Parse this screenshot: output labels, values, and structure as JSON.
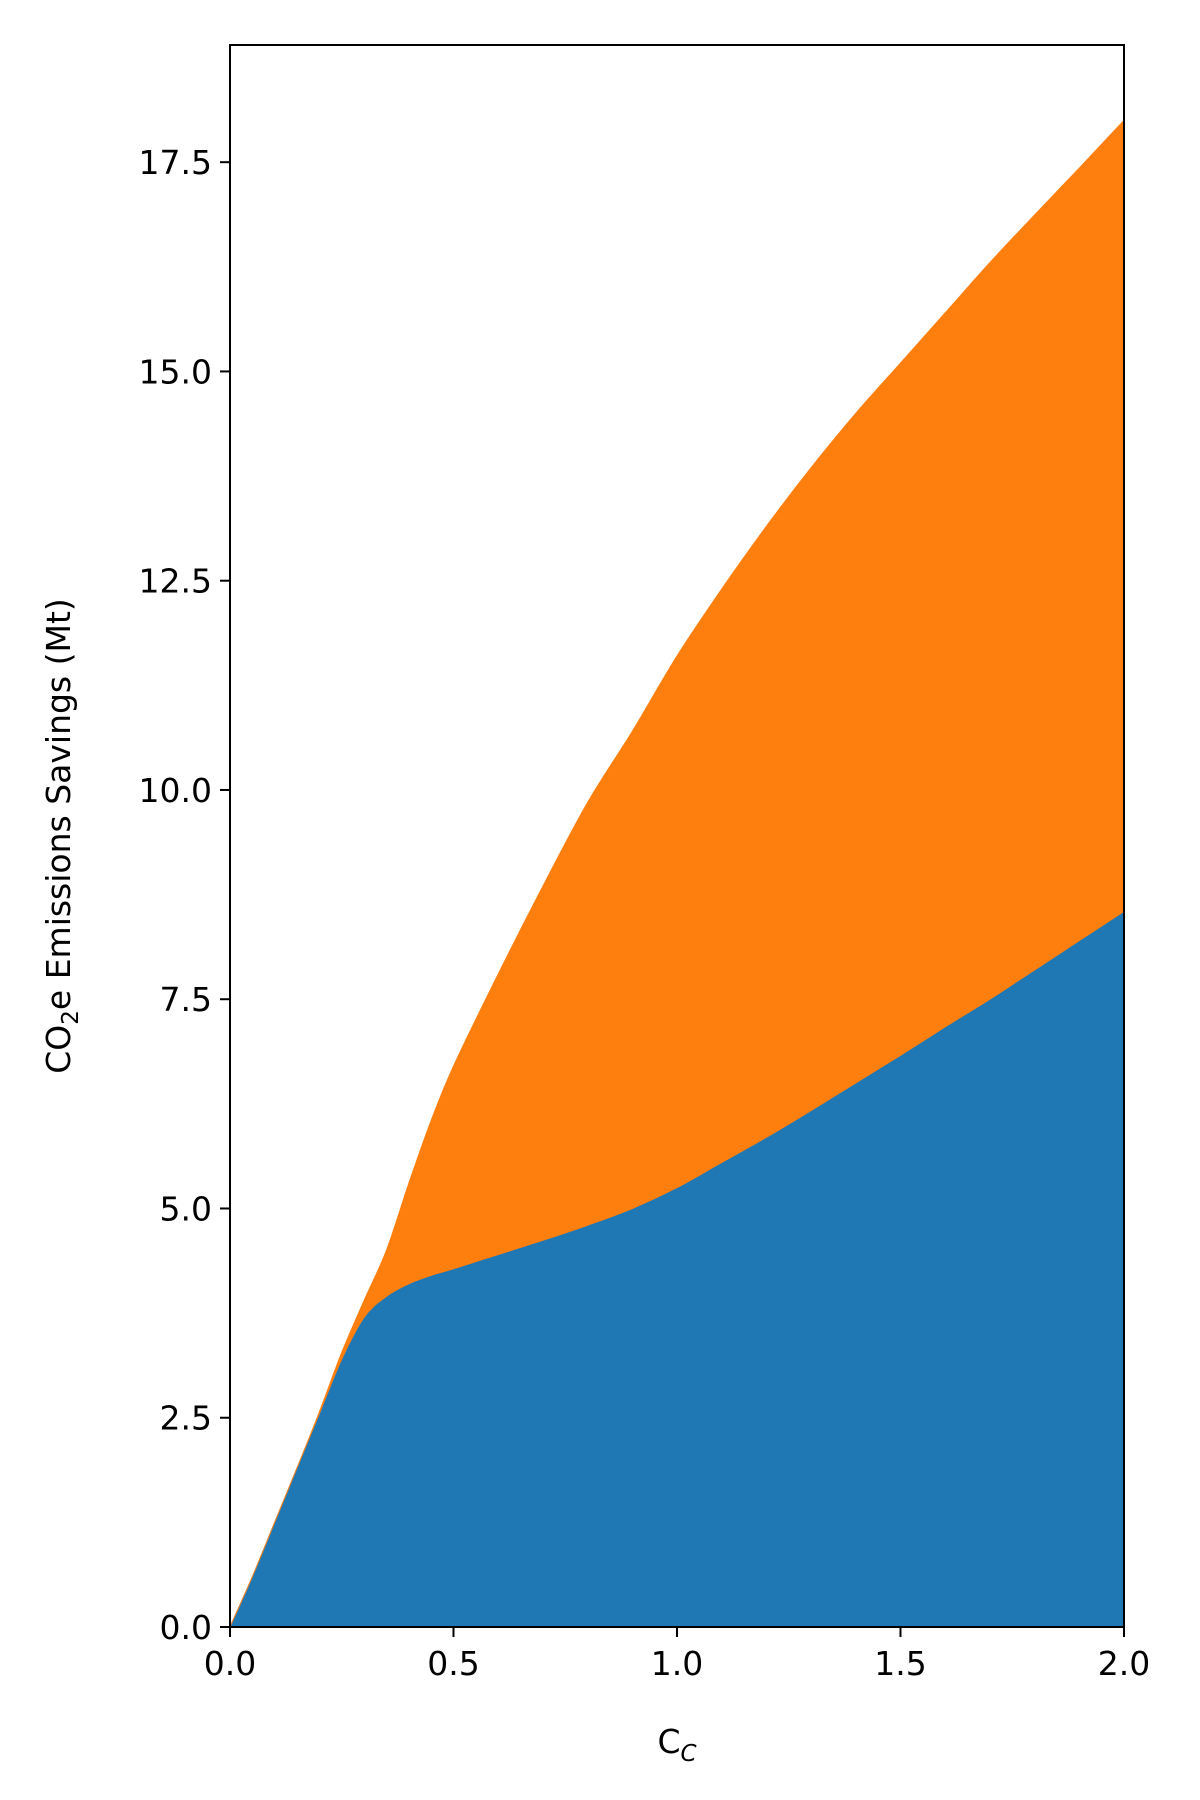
{
  "chart_data": {
    "type": "area",
    "stacked": true,
    "title": "",
    "xlabel": {
      "main": "C",
      "sub": "C"
    },
    "ylabel": {
      "pre": "CO",
      "sub": "2",
      "post": "e Emissions Savings (Mt)"
    },
    "xlim": [
      0,
      2.0
    ],
    "ylim": [
      0,
      18.9
    ],
    "grid": false,
    "legend": "none",
    "x_ticks": [
      0.0,
      0.5,
      1.0,
      1.5,
      2.0
    ],
    "x_tick_labels": [
      "0.0",
      "0.5",
      "1.0",
      "1.5",
      "2.0"
    ],
    "y_ticks": [
      0.0,
      2.5,
      5.0,
      7.5,
      10.0,
      12.5,
      15.0,
      17.5
    ],
    "y_tick_labels": [
      "0.0",
      "2.5",
      "5.0",
      "7.5",
      "10.0",
      "12.5",
      "15.0",
      "17.5"
    ],
    "x": [
      0.0,
      0.05,
      0.1,
      0.15,
      0.2,
      0.25,
      0.3,
      0.35,
      0.4,
      0.45,
      0.5,
      0.6,
      0.7,
      0.8,
      0.9,
      1.0,
      1.1,
      1.2,
      1.3,
      1.4,
      1.5,
      1.6,
      1.7,
      1.8,
      1.9,
      2.0
    ],
    "series": [
      {
        "color": "#1f77b4",
        "values": [
          0.0,
          0.6,
          1.25,
          1.9,
          2.55,
          3.2,
          3.7,
          3.95,
          4.1,
          4.2,
          4.28,
          4.45,
          4.62,
          4.8,
          5.0,
          5.25,
          5.55,
          5.85,
          6.17,
          6.5,
          6.83,
          7.17,
          7.5,
          7.85,
          8.2,
          8.55
        ]
      },
      {
        "color": "#ff7f0e",
        "values": [
          0.0,
          0.0,
          0.0,
          0.0,
          0.02,
          0.08,
          0.2,
          0.55,
          1.2,
          1.85,
          2.42,
          3.35,
          4.23,
          5.05,
          5.7,
          6.35,
          6.85,
          7.3,
          7.68,
          8.0,
          8.27,
          8.53,
          8.8,
          9.02,
          9.23,
          9.45
        ]
      }
    ]
  }
}
